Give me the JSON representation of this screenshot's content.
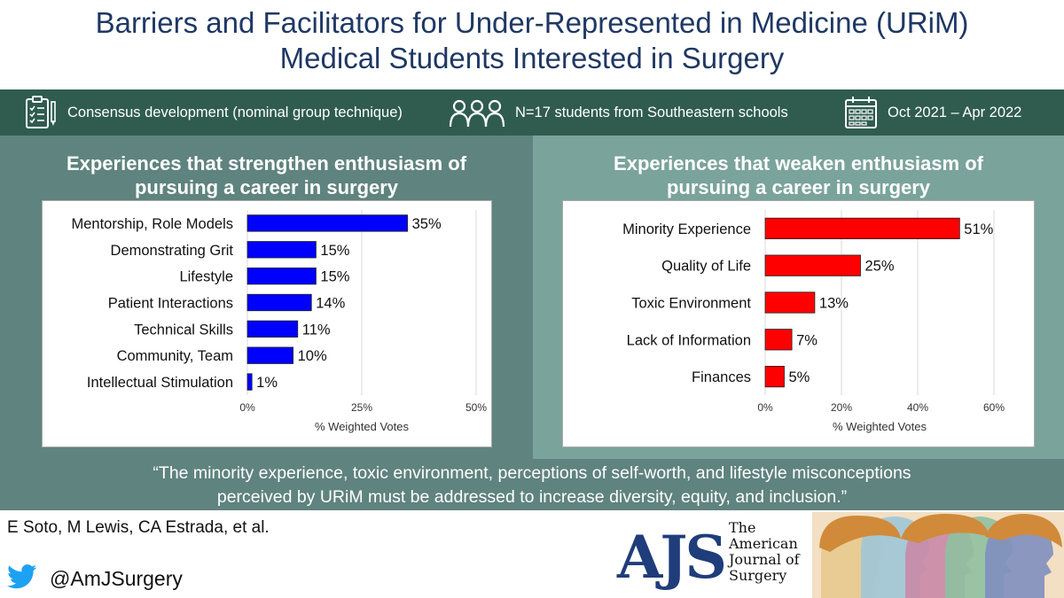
{
  "title": {
    "line1": "Barriers and Facilitators for Under-Represented in Medicine (URiM)",
    "line2": "Medical Students Interested in Surgery"
  },
  "info_bar": {
    "method": "Consensus development (nominal group technique)",
    "participants": "N=17 students from Southeastern schools",
    "dates": "Oct 2021 – Apr 2022",
    "icons": [
      "clipboard-checklist-icon",
      "people-group-icon",
      "calendar-icon"
    ]
  },
  "left_panel": {
    "title_line1": "Experiences that strengthen enthusiasm of",
    "title_line2": "pursuing a career in surgery"
  },
  "right_panel": {
    "title_line1": "Experiences that weaken enthusiasm of",
    "title_line2": "pursuing a career in surgery"
  },
  "chart_data": [
    {
      "type": "bar",
      "orientation": "horizontal",
      "categories": [
        "Mentorship, Role Models",
        "Demonstrating Grit",
        "Lifestyle",
        "Patient Interactions",
        "Technical Skills",
        "Community, Team",
        "Intellectual Stimulation"
      ],
      "values": [
        35,
        15,
        15,
        14,
        11,
        10,
        1
      ],
      "labels": [
        "35%",
        "15%",
        "15%",
        "14%",
        "11%",
        "10%",
        "1%"
      ],
      "xlabel": "% Weighted Votes",
      "xlim": [
        0,
        50
      ],
      "ticks": [
        0,
        25,
        50
      ],
      "tick_labels": [
        "0%",
        "25%",
        "50%"
      ],
      "grid": true,
      "bar_color": "#0000ff"
    },
    {
      "type": "bar",
      "orientation": "horizontal",
      "categories": [
        "Minority Experience",
        "Quality of Life",
        "Toxic Environment",
        "Lack of Information",
        "Finances"
      ],
      "values": [
        51,
        25,
        13,
        7,
        5
      ],
      "labels": [
        "51%",
        "25%",
        "13%",
        "7%",
        "5%"
      ],
      "xlabel": "% Weighted Votes",
      "xlim": [
        0,
        60
      ],
      "ticks": [
        0,
        20,
        40,
        60
      ],
      "tick_labels": [
        "0%",
        "20%",
        "40%",
        "60%"
      ],
      "grid": true,
      "bar_color": "#ff0000"
    }
  ],
  "quote": {
    "line1": "“The minority experience, toxic environment, perceptions of self-worth, and lifestyle misconceptions",
    "line2": "perceived by URiM must be addressed to increase diversity, equity, and inclusion.”"
  },
  "authors": "E Soto, M Lewis, CA Estrada, et al.",
  "twitter": {
    "icon": "twitter-bird-icon",
    "handle": "@AmJSurgery"
  },
  "journal_logo": {
    "letters": "AJS",
    "line1": "The",
    "line2": "American",
    "line3": "Journal of",
    "line4": "Surgery"
  },
  "colors": {
    "title": "#1f3864",
    "info_bar": "#2f5c4f",
    "panel_left": "#5f837e",
    "panel_right": "#7aa39b",
    "strengthen_bar": "#0000ff",
    "weaken_bar": "#ff0000"
  }
}
